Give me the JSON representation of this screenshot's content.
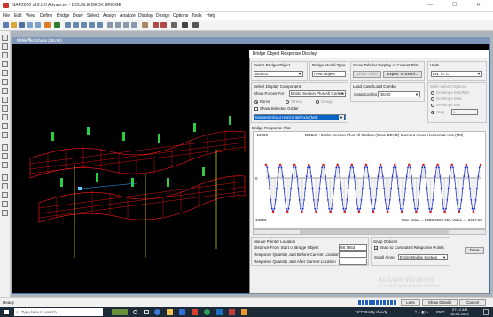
{
  "app": {
    "title": "SAP2000 v19.0.0 Advanced - DOUBLE DECK BRIDGE",
    "window_controls": "— ☐ ✕"
  },
  "menu": [
    "File",
    "Edit",
    "View",
    "Define",
    "Bridge",
    "Draw",
    "Select",
    "Assign",
    "Analyze",
    "Display",
    "Design",
    "Options",
    "Tools",
    "Help"
  ],
  "child_window": {
    "title": "Deformed Shape (DEAD)"
  },
  "dialog": {
    "title": "Bridge Object Response Display",
    "bridge_object": {
      "label": "Select Bridge Object",
      "value": "BOBJ1"
    },
    "bridge_model_type": {
      "label": "Bridge Model Type",
      "value": "Area Object"
    },
    "tabular": {
      "label": "Show Tabular Display of Current Plot",
      "show_table": "Show Table",
      "export": "Export To Excel..."
    },
    "units": {
      "label": "Units",
      "value": "KN, m, C"
    },
    "display_component": {
      "label": "Select Display Component",
      "show_forces_for_label": "Show Forces For",
      "show_forces_for_value": "Entire Section Plus All Girders",
      "radio_force": "Force",
      "radio_stress": "Stress",
      "radio_design": "Design",
      "show_selected_girder": "Show Selected Girder",
      "component_value": "Moment About Horizontal Axis (M3)"
    },
    "load_case": {
      "label": "Load Case/Load Combo",
      "field_label": "Case/Combo",
      "value": "DEAD"
    },
    "multivalued": {
      "label": "Multi-Valued Options",
      "opt1": "Envelope Max/Min",
      "opt2": "Envelope Max",
      "opt3": "Envelope Min",
      "opt4": "Step",
      "step_value": "1"
    },
    "plot": {
      "label": "Bridge Response Plot",
      "caption": "BOBJ1 : Entire Section Plus All Girders  (Case DEAD)  Moment About Horizontal Axis  (M3)",
      "y_top": "-10000",
      "y_zero": "0",
      "y_bottom": "10000",
      "max_min_text": "Max Value = 8682.0182   Min Value = -3437.95"
    },
    "mouse_pointer": {
      "label": "Mouse Pointer Location",
      "distance_label": "Distance From Start of Bridge Object",
      "distance_value": "68.7653",
      "resp_before": "Response Quantity Just Before Current Location",
      "resp_after": "Response Quantity Just After Current Location"
    },
    "snap": {
      "label": "Snap Options",
      "snap_check": "Snap to Computed Response Points",
      "scroll_label": "Scroll Along",
      "scroll_value": "Entire Bridge Section"
    },
    "done": "Done"
  },
  "statusbar": {
    "status": "Ready",
    "less": "Less",
    "show_details": "Show Details",
    "cancel": "Cancel"
  },
  "watermark": {
    "line1": "Activate Windows",
    "line2": "Go to Settings to activate Windows."
  },
  "taskbar": {
    "search_placeholder": "Type here to search",
    "weather": "15°C  Partly cloudy",
    "lang": "ENG",
    "time": "07:12 AM",
    "date": "16-03-2023"
  },
  "chart_data": {
    "type": "line",
    "title": "BOBJ1 : Entire Section Plus All Girders  (Case DEAD)  Moment About Horizontal Axis  (M3)",
    "ylim": [
      -10000,
      10000
    ],
    "y_inverted": true,
    "spans": 15,
    "series": [
      {
        "name": "",
        "values": [
          -3438,
          8682,
          -3438,
          8682,
          -3438,
          8682,
          -3438,
          8682,
          -3438,
          8682,
          -3438,
          8682,
          -3438,
          8682,
          -3438,
          8682,
          -3438,
          8682,
          -3438,
          8682,
          -3438,
          8682,
          -3438,
          8682,
          -3438,
          8682,
          -3438,
          8682,
          -3438,
          8682,
          -3438
        ]
      }
    ],
    "annotation": "Max Value = 8682.0182   Min Value = -3437.95"
  }
}
